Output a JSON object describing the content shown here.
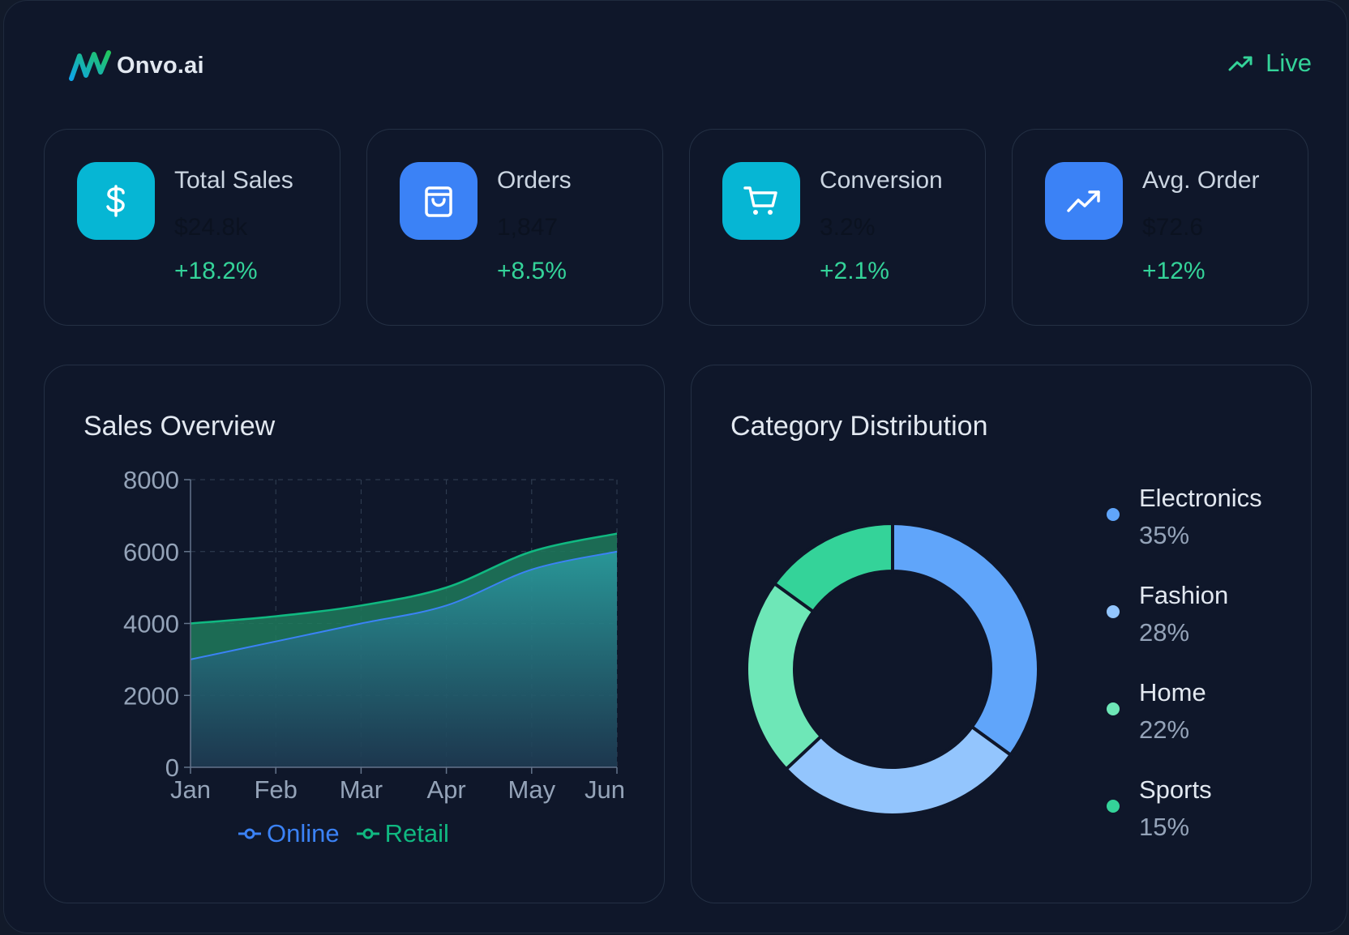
{
  "header": {
    "brand": "Onvo.ai",
    "live_label": "Live"
  },
  "colors": {
    "background": "#0f172a",
    "accent_green": "#34d399",
    "cyan": "#06b6d4",
    "blue": "#3b82f6"
  },
  "kpis": [
    {
      "label": "Total Sales",
      "value": "$24.8k",
      "change": "+18.2%",
      "icon": "dollar-icon",
      "icon_color": "#06b6d4"
    },
    {
      "label": "Orders",
      "value": "1,847",
      "change": "+8.5%",
      "icon": "shopping-bag-icon",
      "icon_color": "#3b82f6"
    },
    {
      "label": "Conversion",
      "value": "3.2%",
      "change": "+2.1%",
      "icon": "shopping-cart-icon",
      "icon_color": "#06b6d4"
    },
    {
      "label": "Avg. Order",
      "value": "$72.6",
      "change": "+12%",
      "icon": "trending-up-icon",
      "icon_color": "#3b82f6"
    }
  ],
  "sales_panel": {
    "title": "Sales Overview"
  },
  "category_panel": {
    "title": "Category Distribution"
  },
  "chart_data": [
    {
      "type": "area",
      "title": "Sales Overview",
      "categories": [
        "Jan",
        "Feb",
        "Mar",
        "Apr",
        "May",
        "Jun"
      ],
      "series": [
        {
          "name": "Online",
          "values": [
            3000,
            3500,
            4000,
            4500,
            5500,
            6000
          ],
          "color": "#3b82f6"
        },
        {
          "name": "Retail",
          "values": [
            1000,
            700,
            500,
            500,
            500,
            500
          ],
          "color": "#10b981"
        }
      ],
      "stacked": true,
      "ylim": [
        0,
        8000
      ],
      "yticks": [
        0,
        2000,
        4000,
        6000,
        8000
      ],
      "grid": true,
      "legend": "bottom"
    },
    {
      "type": "pie",
      "title": "Category Distribution",
      "donut": true,
      "slices": [
        {
          "name": "Electronics",
          "value": 35,
          "label": "35%",
          "color": "#60a5fa"
        },
        {
          "name": "Fashion",
          "value": 28,
          "label": "28%",
          "color": "#93c5fd"
        },
        {
          "name": "Home",
          "value": 22,
          "label": "22%",
          "color": "#6ee7b7"
        },
        {
          "name": "Sports",
          "value": 15,
          "label": "15%",
          "color": "#34d399"
        }
      ],
      "legend": "right"
    }
  ]
}
